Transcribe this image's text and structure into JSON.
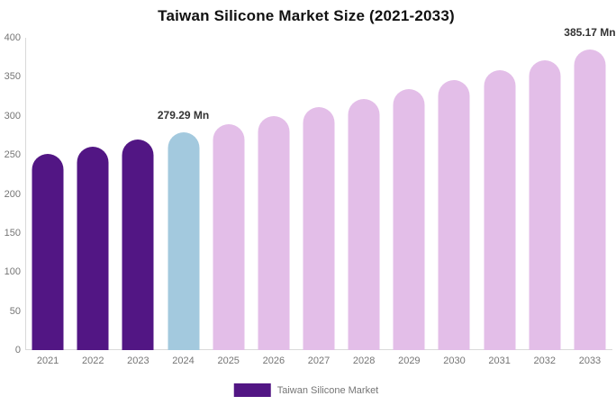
{
  "chart_data": {
    "type": "bar",
    "title": "Taiwan Silicone Market Size (2021-2033)",
    "xlabel": "",
    "ylabel": "",
    "unit": "Mn",
    "categories": [
      "2021",
      "2022",
      "2023",
      "2024",
      "2025",
      "2026",
      "2027",
      "2028",
      "2029",
      "2030",
      "2031",
      "2032",
      "2033"
    ],
    "values": [
      250.9,
      260.1,
      269.5,
      279.29,
      289.4,
      299.9,
      310.8,
      322.1,
      333.8,
      345.9,
      358.4,
      371.4,
      385.17
    ],
    "ylim": [
      0,
      400
    ],
    "yticks": [
      0,
      50,
      100,
      150,
      200,
      250,
      300,
      350,
      400
    ],
    "grid": false,
    "legend_position": "bottom-center",
    "bar_colors": [
      "#521684",
      "#521684",
      "#521684",
      "#a3c9de",
      "#e3bee8",
      "#e3bee8",
      "#e3bee8",
      "#e3bee8",
      "#e3bee8",
      "#e3bee8",
      "#e3bee8",
      "#e3bee8",
      "#e3bee8"
    ],
    "annotations": [
      {
        "index": 3,
        "text": "279.29 Mn"
      },
      {
        "index": 12,
        "text": "385.17 Mn"
      }
    ],
    "colors": {
      "historical_bar": "#521684",
      "current_year_bar": "#a3c9de",
      "forecast_bar": "#e3bee8",
      "axis_line": "#d9d9d9",
      "tick_text": "#757575",
      "value_label_text": "#333333",
      "title_text": "#111111"
    }
  },
  "legend": {
    "label": "Taiwan Silicone Market",
    "swatch_color": "#521684"
  }
}
